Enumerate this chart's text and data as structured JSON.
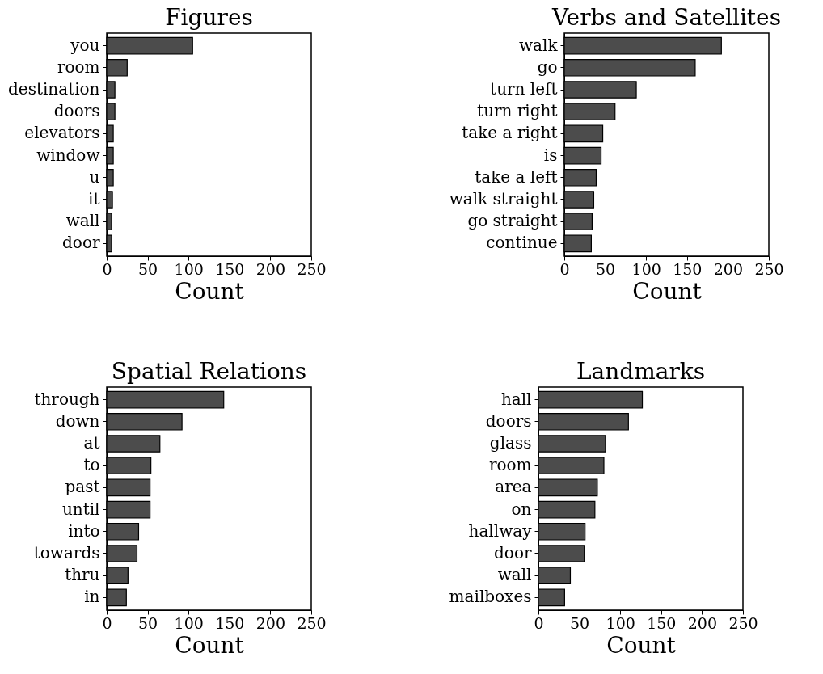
{
  "chart_data": [
    {
      "type": "bar",
      "orientation": "horizontal",
      "title": "Figures",
      "xlabel": "Count",
      "categories": [
        "you",
        "room",
        "destination",
        "doors",
        "elevators",
        "window",
        "u",
        "it",
        "wall",
        "door"
      ],
      "values": [
        105,
        25,
        10,
        10,
        8,
        8,
        8,
        7,
        6,
        6
      ],
      "color": "#4c4c4c",
      "xlim": [
        0,
        250
      ],
      "xticks": [
        0,
        50,
        100,
        150,
        200,
        250
      ],
      "grid": false
    },
    {
      "type": "bar",
      "orientation": "horizontal",
      "title": "Verbs and Satellites",
      "xlabel": "Count",
      "categories": [
        "walk",
        "go",
        "turn left",
        "turn right",
        "take a right",
        "is",
        "take a left",
        "walk straight",
        "go straight",
        "continue"
      ],
      "values": [
        192,
        160,
        88,
        62,
        47,
        45,
        39,
        36,
        34,
        33
      ],
      "color": "#4c4c4c",
      "xlim": [
        0,
        250
      ],
      "xticks": [
        0,
        50,
        100,
        150,
        200,
        250
      ],
      "grid": false
    },
    {
      "type": "bar",
      "orientation": "horizontal",
      "title": "Spatial Relations",
      "xlabel": "Count",
      "categories": [
        "through",
        "down",
        "at",
        "to",
        "past",
        "until",
        "into",
        "towards",
        "thru",
        "in"
      ],
      "values": [
        143,
        92,
        65,
        54,
        53,
        53,
        39,
        37,
        26,
        24
      ],
      "color": "#4c4c4c",
      "xlim": [
        0,
        250
      ],
      "xticks": [
        0,
        50,
        100,
        150,
        200,
        250
      ],
      "grid": false
    },
    {
      "type": "bar",
      "orientation": "horizontal",
      "title": "Landmarks",
      "xlabel": "Count",
      "categories": [
        "hall",
        "doors",
        "glass",
        "room",
        "area",
        "on",
        "hallway",
        "door",
        "wall",
        "mailboxes"
      ],
      "values": [
        127,
        110,
        82,
        80,
        72,
        69,
        57,
        56,
        39,
        32
      ],
      "color": "#4c4c4c",
      "xlim": [
        0,
        250
      ],
      "xticks": [
        0,
        50,
        100,
        150,
        200,
        250
      ],
      "grid": false
    }
  ]
}
